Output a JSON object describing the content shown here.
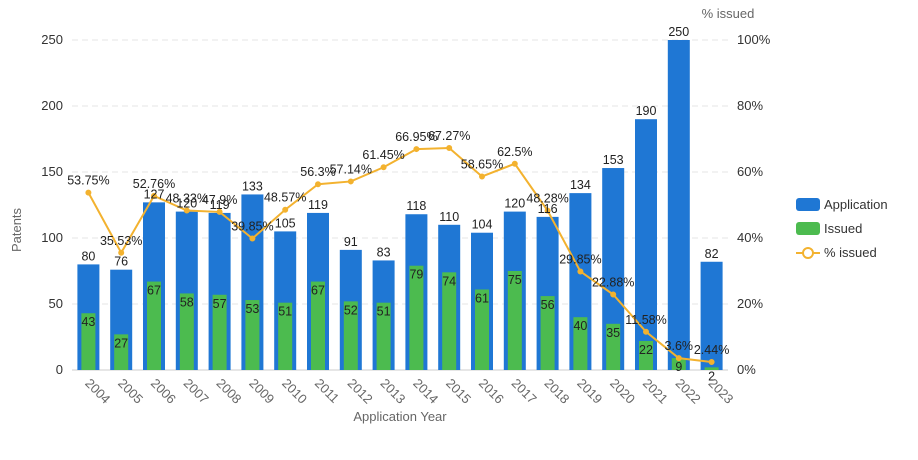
{
  "chart_data": {
    "type": "bar",
    "xlabel": "Application Year",
    "ylabel": "Patents",
    "y2label": "% issued",
    "ylim": [
      0,
      250
    ],
    "y2lim": [
      0,
      100
    ],
    "yticks": [
      0,
      50,
      100,
      150,
      200,
      250
    ],
    "y2ticks": [
      "0%",
      "20%",
      "40%",
      "60%",
      "80%",
      "100%"
    ],
    "grid": true,
    "legend_position": "right",
    "categories": [
      "2004",
      "2005",
      "2006",
      "2007",
      "2008",
      "2009",
      "2010",
      "2011",
      "2012",
      "2013",
      "2014",
      "2015",
      "2016",
      "2017",
      "2018",
      "2019",
      "2020",
      "2021",
      "2022",
      "2023"
    ],
    "series": [
      {
        "name": "Application",
        "type": "bar",
        "color": "#1f77d4",
        "values": [
          80,
          76,
          127,
          120,
          119,
          133,
          105,
          119,
          91,
          83,
          118,
          110,
          104,
          120,
          116,
          134,
          153,
          190,
          250,
          82
        ],
        "labels": [
          "80",
          "76",
          "127",
          "120",
          "119",
          "133",
          "105",
          "119",
          "91",
          "83",
          "118",
          "110",
          "104",
          "120",
          "116",
          "134",
          "153",
          "190",
          "250",
          "82"
        ]
      },
      {
        "name": "Issued",
        "type": "bar",
        "color": "#4cbb4f",
        "values": [
          43,
          27,
          67,
          58,
          57,
          53,
          51,
          67,
          52,
          51,
          79,
          74,
          61,
          75,
          56,
          40,
          35,
          22,
          9,
          2
        ],
        "labels": [
          "43",
          "27",
          "67",
          "58",
          "57",
          "53",
          "51",
          "67",
          "52",
          "51",
          "79",
          "74",
          "61",
          "75",
          "56",
          "40",
          "35",
          "22",
          "9",
          "2"
        ]
      },
      {
        "name": "% issued",
        "type": "line",
        "axis": "right",
        "color": "#f3b22f",
        "values": [
          53.75,
          35.53,
          52.76,
          48.33,
          47.9,
          39.85,
          48.57,
          56.3,
          57.14,
          61.45,
          66.95,
          67.27,
          58.65,
          62.5,
          48.28,
          29.85,
          22.88,
          11.58,
          3.6,
          2.44
        ],
        "labels": [
          "53.75%",
          "35.53%",
          "52.76%",
          "48.33%",
          "47.9%",
          "39.85%",
          "48.57%",
          "56.3%",
          "57.14%",
          "61.45%",
          "66.95%",
          "67.27%",
          "58.65%",
          "62.5%",
          "48.28%",
          "29.85%",
          "22.88%",
          "11.58%",
          "3.6%",
          "2.44%"
        ]
      }
    ]
  }
}
